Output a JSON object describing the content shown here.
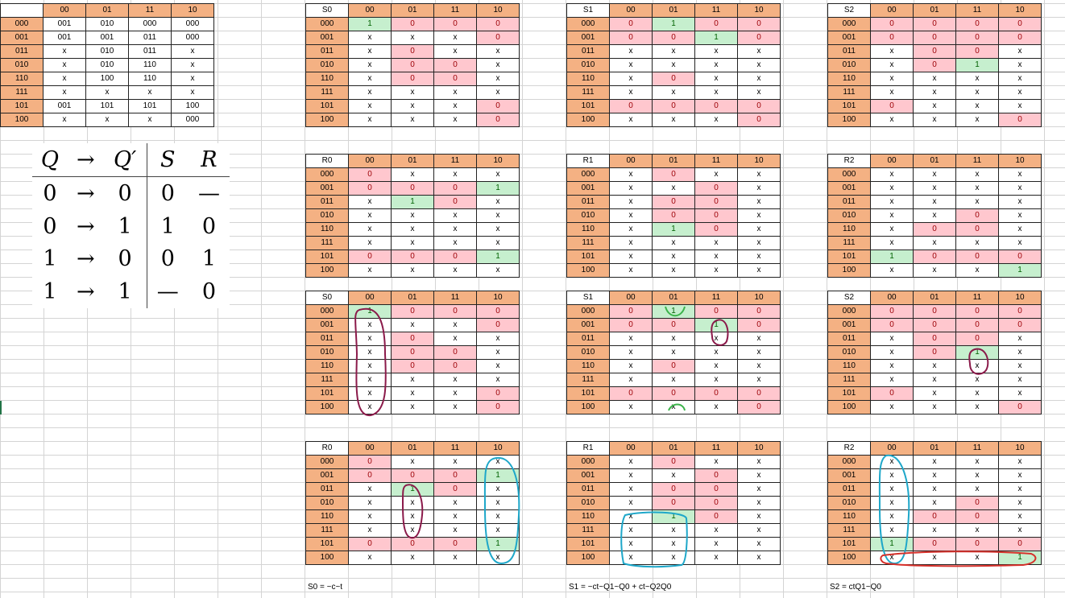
{
  "col_headers": [
    "00",
    "01",
    "11",
    "10"
  ],
  "row_labels": [
    "000",
    "001",
    "011",
    "010",
    "110",
    "111",
    "101",
    "100"
  ],
  "transition_table": {
    "corner": "",
    "rows": [
      [
        "001",
        "010",
        "000",
        "000"
      ],
      [
        "001",
        "001",
        "011",
        "000"
      ],
      [
        "x",
        "010",
        "011",
        "x"
      ],
      [
        "x",
        "010",
        "110",
        "x"
      ],
      [
        "x",
        "100",
        "110",
        "x"
      ],
      [
        "x",
        "x",
        "x",
        "x"
      ],
      [
        "001",
        "101",
        "101",
        "100"
      ],
      [
        "x",
        "x",
        "x",
        "000"
      ]
    ]
  },
  "excitation_table": {
    "header": [
      "Q",
      "→",
      "Q′",
      "S",
      "R"
    ],
    "rows": [
      [
        "0",
        "→",
        "0",
        "0",
        "—"
      ],
      [
        "0",
        "→",
        "1",
        "1",
        "0"
      ],
      [
        "1",
        "→",
        "0",
        "0",
        "1"
      ],
      [
        "1",
        "→",
        "1",
        "—",
        "0"
      ]
    ]
  },
  "maps": [
    {
      "label": "S0",
      "rows": [
        [
          "1",
          "0",
          "0",
          "0"
        ],
        [
          "x",
          "x",
          "x",
          "0"
        ],
        [
          "x",
          "0",
          "x",
          "x"
        ],
        [
          "x",
          "0",
          "0",
          "x"
        ],
        [
          "x",
          "0",
          "0",
          "x"
        ],
        [
          "x",
          "x",
          "x",
          "x"
        ],
        [
          "x",
          "x",
          "x",
          "0"
        ],
        [
          "x",
          "x",
          "x",
          "0"
        ]
      ]
    },
    {
      "label": "S1",
      "rows": [
        [
          "0",
          "1",
          "0",
          "0"
        ],
        [
          "0",
          "0",
          "1",
          "0"
        ],
        [
          "x",
          "x",
          "x",
          "x"
        ],
        [
          "x",
          "x",
          "x",
          "x"
        ],
        [
          "x",
          "0",
          "x",
          "x"
        ],
        [
          "x",
          "x",
          "x",
          "x"
        ],
        [
          "0",
          "0",
          "0",
          "0"
        ],
        [
          "x",
          "x",
          "x",
          "0"
        ]
      ]
    },
    {
      "label": "S2",
      "rows": [
        [
          "0",
          "0",
          "0",
          "0"
        ],
        [
          "0",
          "0",
          "0",
          "0"
        ],
        [
          "x",
          "0",
          "0",
          "x"
        ],
        [
          "x",
          "0",
          "1",
          "x"
        ],
        [
          "x",
          "x",
          "x",
          "x"
        ],
        [
          "x",
          "x",
          "x",
          "x"
        ],
        [
          "0",
          "x",
          "x",
          "x"
        ],
        [
          "x",
          "x",
          "x",
          "0"
        ]
      ]
    },
    {
      "label": "R0",
      "rows": [
        [
          "0",
          "x",
          "x",
          "x"
        ],
        [
          "0",
          "0",
          "0",
          "1"
        ],
        [
          "x",
          "1",
          "0",
          "x"
        ],
        [
          "x",
          "x",
          "x",
          "x"
        ],
        [
          "x",
          "x",
          "x",
          "x"
        ],
        [
          "x",
          "x",
          "x",
          "x"
        ],
        [
          "0",
          "0",
          "0",
          "1"
        ],
        [
          "x",
          "x",
          "x",
          "x"
        ]
      ]
    },
    {
      "label": "R1",
      "rows": [
        [
          "x",
          "0",
          "x",
          "x"
        ],
        [
          "x",
          "x",
          "0",
          "x"
        ],
        [
          "x",
          "0",
          "0",
          "x"
        ],
        [
          "x",
          "0",
          "0",
          "x"
        ],
        [
          "x",
          "1",
          "0",
          "x"
        ],
        [
          "x",
          "x",
          "x",
          "x"
        ],
        [
          "x",
          "x",
          "x",
          "x"
        ],
        [
          "x",
          "x",
          "x",
          "x"
        ]
      ]
    },
    {
      "label": "R2",
      "rows": [
        [
          "x",
          "x",
          "x",
          "x"
        ],
        [
          "x",
          "x",
          "x",
          "x"
        ],
        [
          "x",
          "x",
          "x",
          "x"
        ],
        [
          "x",
          "x",
          "0",
          "x"
        ],
        [
          "x",
          "0",
          "0",
          "x"
        ],
        [
          "x",
          "x",
          "x",
          "x"
        ],
        [
          "1",
          "0",
          "0",
          "0"
        ],
        [
          "x",
          "x",
          "x",
          "1"
        ]
      ]
    },
    {
      "label": "S0",
      "rows": [
        [
          "1",
          "0",
          "0",
          "0"
        ],
        [
          "x",
          "x",
          "x",
          "0"
        ],
        [
          "x",
          "0",
          "x",
          "x"
        ],
        [
          "x",
          "0",
          "0",
          "x"
        ],
        [
          "x",
          "0",
          "0",
          "x"
        ],
        [
          "x",
          "x",
          "x",
          "x"
        ],
        [
          "x",
          "x",
          "x",
          "0"
        ],
        [
          "x",
          "x",
          "x",
          "0"
        ]
      ]
    },
    {
      "label": "S1",
      "rows": [
        [
          "0",
          "1",
          "0",
          "0"
        ],
        [
          "0",
          "0",
          "1",
          "0"
        ],
        [
          "x",
          "x",
          "x",
          "x"
        ],
        [
          "x",
          "x",
          "x",
          "x"
        ],
        [
          "x",
          "0",
          "x",
          "x"
        ],
        [
          "x",
          "x",
          "x",
          "x"
        ],
        [
          "0",
          "0",
          "0",
          "0"
        ],
        [
          "x",
          "x",
          "x",
          "0"
        ]
      ]
    },
    {
      "label": "S2",
      "rows": [
        [
          "0",
          "0",
          "0",
          "0"
        ],
        [
          "0",
          "0",
          "0",
          "0"
        ],
        [
          "x",
          "0",
          "0",
          "x"
        ],
        [
          "x",
          "0",
          "1",
          "x"
        ],
        [
          "x",
          "x",
          "x",
          "x"
        ],
        [
          "x",
          "x",
          "x",
          "x"
        ],
        [
          "0",
          "x",
          "x",
          "x"
        ],
        [
          "x",
          "x",
          "x",
          "0"
        ]
      ]
    },
    {
      "label": "R0",
      "rows": [
        [
          "0",
          "x",
          "x",
          "x"
        ],
        [
          "0",
          "0",
          "0",
          "1"
        ],
        [
          "x",
          "1",
          "0",
          "x"
        ],
        [
          "x",
          "x",
          "x",
          "x"
        ],
        [
          "x",
          "x",
          "x",
          "x"
        ],
        [
          "x",
          "x",
          "x",
          "x"
        ],
        [
          "0",
          "0",
          "0",
          "1"
        ],
        [
          "x",
          "x",
          "x",
          "x"
        ]
      ]
    },
    {
      "label": "R1",
      "rows": [
        [
          "x",
          "0",
          "x",
          "x"
        ],
        [
          "x",
          "x",
          "0",
          "x"
        ],
        [
          "x",
          "0",
          "0",
          "x"
        ],
        [
          "x",
          "0",
          "0",
          "x"
        ],
        [
          "x",
          "1",
          "0",
          "x"
        ],
        [
          "x",
          "x",
          "x",
          "x"
        ],
        [
          "x",
          "x",
          "x",
          "x"
        ],
        [
          "x",
          "x",
          "x",
          "x"
        ]
      ]
    },
    {
      "label": "R2",
      "rows": [
        [
          "x",
          "x",
          "x",
          "x"
        ],
        [
          "x",
          "x",
          "x",
          "x"
        ],
        [
          "x",
          "x",
          "x",
          "x"
        ],
        [
          "x",
          "x",
          "0",
          "x"
        ],
        [
          "x",
          "0",
          "0",
          "x"
        ],
        [
          "x",
          "x",
          "x",
          "x"
        ],
        [
          "1",
          "0",
          "0",
          "0"
        ],
        [
          "x",
          "x",
          "x",
          "1"
        ]
      ]
    }
  ],
  "equations": {
    "s0": "S0 = ~c~t",
    "s1": "S1 = ~ct~Q1~Q0 + ct~Q2Q0",
    "s2": "S2 = ctQ1~Q0"
  },
  "annotation_colors": {
    "purple": "#8b1a4a",
    "green": "#3cb44b",
    "teal": "#1ea7c9",
    "red": "#d6302a"
  }
}
